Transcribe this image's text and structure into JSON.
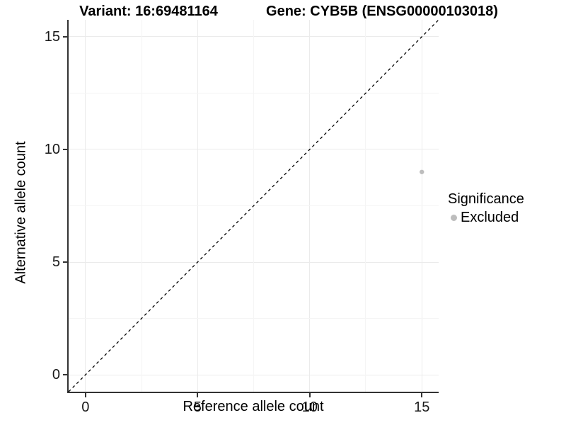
{
  "titles": {
    "variant": "Variant: 16:69481164",
    "gene": "Gene: CYB5B (ENSG00000103018)"
  },
  "legend": {
    "title": "Significance",
    "items": [
      {
        "label": "Excluded",
        "color": "#bdbdbd"
      }
    ]
  },
  "colors": {
    "axis_line": "#333333",
    "grid_major": "#ebebeb",
    "grid_minor": "#f5f5f5",
    "reference_line": "#000000",
    "point": "#bdbdbd",
    "text": "#000000"
  },
  "chart_data": {
    "type": "scatter",
    "title": "Variant: 16:69481164 — Gene: CYB5B (ENSG00000103018)",
    "xlabel": "Reference allele count",
    "ylabel": "Alternative allele count",
    "xlim": [
      -0.75,
      15.75
    ],
    "ylim": [
      -0.75,
      15.75
    ],
    "x_ticks": [
      0,
      5,
      10,
      15
    ],
    "y_ticks": [
      0,
      5,
      10,
      15
    ],
    "x_minor_gridlines": [
      2.5,
      7.5,
      12.5
    ],
    "y_minor_gridlines": [
      2.5,
      7.5,
      12.5
    ],
    "grid": "on",
    "legend_position": "right",
    "series": [
      {
        "name": "Excluded",
        "color": "#bdbdbd",
        "points": [
          {
            "x": 15,
            "y": 9
          }
        ]
      }
    ],
    "reference_line": {
      "type": "identity",
      "style": "dashed",
      "color": "#000000",
      "from": [
        -0.75,
        -0.75
      ],
      "to": [
        15.75,
        15.75
      ]
    }
  }
}
